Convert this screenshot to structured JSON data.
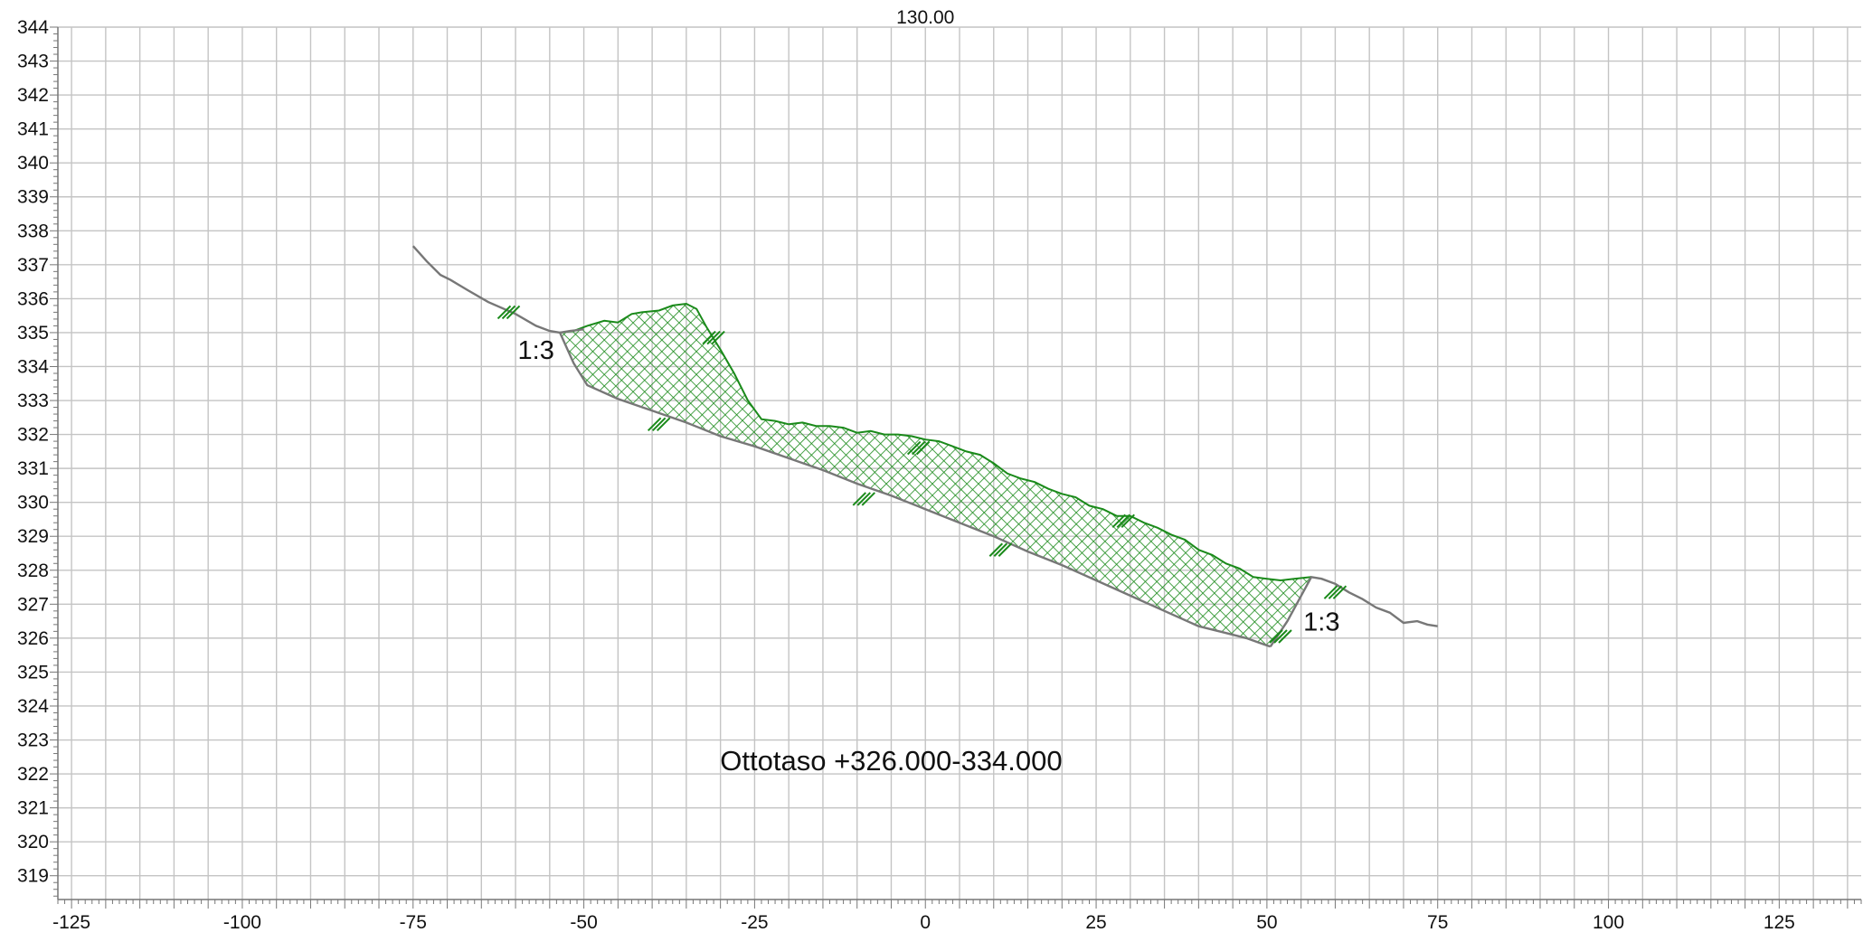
{
  "chart_data": {
    "type": "line",
    "title": "130.00",
    "xlabel": "",
    "ylabel": "",
    "xlim": [
      -127,
      137
    ],
    "ylim": [
      318.3,
      344
    ],
    "grid": true,
    "x_ticks": [
      -125,
      -100,
      -75,
      -50,
      -25,
      0,
      25,
      50,
      75,
      100,
      125
    ],
    "y_ticks": [
      319,
      320,
      321,
      322,
      323,
      324,
      325,
      326,
      327,
      328,
      329,
      330,
      331,
      332,
      333,
      334,
      335,
      336,
      337,
      338,
      339,
      340,
      341,
      342,
      343,
      344
    ],
    "colors": {
      "ground": "#777777",
      "fill": "#1a8a1a",
      "grid": "#c4c4c4",
      "text": "#111111"
    },
    "series": [
      {
        "role": "existing-ground",
        "x": [
          -75,
          -73,
          -71,
          -69.5,
          -67,
          -64,
          -60,
          -57,
          -55,
          -53.5,
          -52,
          -50
        ],
        "y": [
          337.55,
          337.1,
          336.7,
          336.55,
          336.25,
          335.9,
          335.55,
          335.2,
          335.05,
          335.0,
          335.05,
          335.1
        ]
      },
      {
        "role": "excavation-top",
        "x": [
          -53.5,
          -51.5,
          -49.5,
          -47,
          -45,
          -43,
          -41.5,
          -39,
          -37,
          -35,
          -33.5,
          -32,
          -30,
          -28,
          -26,
          -24,
          -22,
          -20,
          -18,
          -16,
          -14,
          -12,
          -10,
          -8,
          -6,
          -4,
          -2,
          0,
          2,
          4,
          6,
          8,
          10,
          12,
          14,
          16,
          18,
          20,
          22,
          24,
          26,
          28,
          30,
          32,
          34,
          36,
          38,
          40,
          42,
          44,
          46,
          48,
          50,
          52,
          54,
          56.5
        ],
        "y": [
          335.0,
          335.05,
          335.2,
          335.35,
          335.3,
          335.55,
          335.6,
          335.65,
          335.8,
          335.85,
          335.7,
          335.15,
          334.5,
          333.8,
          333.0,
          332.45,
          332.4,
          332.3,
          332.35,
          332.25,
          332.25,
          332.2,
          332.05,
          332.1,
          332.0,
          332.0,
          331.95,
          331.85,
          331.8,
          331.65,
          331.5,
          331.4,
          331.15,
          330.85,
          330.7,
          330.6,
          330.4,
          330.25,
          330.15,
          329.9,
          329.8,
          329.6,
          329.6,
          329.4,
          329.25,
          329.05,
          328.9,
          328.6,
          328.45,
          328.2,
          328.05,
          327.8,
          327.75,
          327.7,
          327.75,
          327.8
        ]
      },
      {
        "role": "excavation-bottom",
        "x": [
          50.5,
          47,
          44,
          40,
          35,
          30,
          25,
          20,
          15,
          10,
          5,
          0,
          -5,
          -10,
          -15,
          -20,
          -25,
          -30,
          -35,
          -40,
          -45,
          -49.5,
          -51.5,
          -53.5
        ],
        "y": [
          325.75,
          326.0,
          326.15,
          326.35,
          326.8,
          327.25,
          327.7,
          328.15,
          328.55,
          329.0,
          329.4,
          329.8,
          330.2,
          330.55,
          330.95,
          331.3,
          331.65,
          331.95,
          332.35,
          332.7,
          333.05,
          333.45,
          334.1,
          335.0
        ]
      },
      {
        "role": "right-slope-and-ground",
        "x": [
          50.5,
          53,
          56.5,
          58,
          60,
          62,
          64,
          66,
          68,
          70,
          72,
          73.5,
          75
        ],
        "y": [
          325.75,
          326.5,
          327.8,
          327.75,
          327.6,
          327.35,
          327.15,
          326.9,
          326.75,
          326.45,
          326.5,
          326.4,
          326.35
        ]
      }
    ],
    "annotations": [
      {
        "text": "1:3",
        "x": -57,
        "y": 334.5,
        "size": "medium"
      },
      {
        "text": "1:3",
        "x": 58,
        "y": 326.5,
        "size": "medium"
      },
      {
        "text": "Ottotaso +326.000-334.000",
        "x": -5,
        "y": 322.4,
        "size": "large"
      }
    ],
    "hatch_marks": [
      {
        "x": -61,
        "y": 335.6,
        "side": "above"
      },
      {
        "x": -31,
        "y": 334.85,
        "side": "above"
      },
      {
        "x": -39,
        "y": 332.3,
        "side": "below"
      },
      {
        "x": -1,
        "y": 331.6,
        "side": "above"
      },
      {
        "x": -9,
        "y": 330.1,
        "side": "below"
      },
      {
        "x": 29,
        "y": 329.45,
        "side": "above"
      },
      {
        "x": 11,
        "y": 328.6,
        "side": "below"
      },
      {
        "x": 60,
        "y": 327.35,
        "side": "above"
      },
      {
        "x": 52,
        "y": 326.05,
        "side": "below"
      }
    ]
  }
}
